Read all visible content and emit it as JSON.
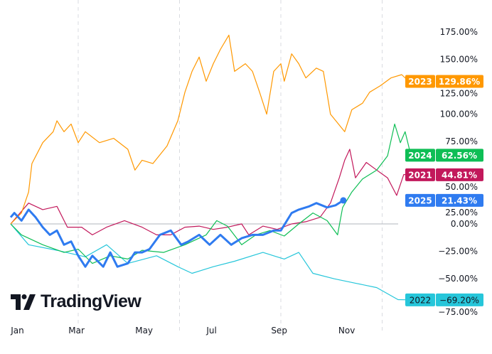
{
  "chart_data": {
    "type": "line",
    "title": "",
    "xlabel": "",
    "ylabel": "",
    "x_unit": "months since Jan 1",
    "xlim": [
      0,
      12
    ],
    "ylim": [
      -80,
      190
    ],
    "x_ticks": [
      {
        "label": "Jan",
        "value": 0.2
      },
      {
        "label": "Mar",
        "value": 1.95
      },
      {
        "label": "May",
        "value": 3.95
      },
      {
        "label": "Jul",
        "value": 5.95
      },
      {
        "label": "Sep",
        "value": 7.95
      },
      {
        "label": "Nov",
        "value": 9.95
      }
    ],
    "y_ticks": [
      {
        "label": "175.00%",
        "value": 175
      },
      {
        "label": "150.00%",
        "value": 150
      },
      {
        "label": "125.00%",
        "value": 125
      },
      {
        "label": "100.00%",
        "value": 100
      },
      {
        "label": "75.00%",
        "value": 75
      },
      {
        "label": "50.00%",
        "value": 50
      },
      {
        "label": "25.00%",
        "value": 25
      },
      {
        "label": "0.00%",
        "value": 0
      },
      {
        "label": "−25.00%",
        "value": -25
      },
      {
        "label": "−50.00%",
        "value": -50
      },
      {
        "label": "−75.00%",
        "value": -75
      }
    ],
    "grid_x_dashed": [
      2,
      5,
      8,
      11
    ],
    "legend": "right-axis-tags",
    "series": [
      {
        "name": "2023",
        "color": "#ff9800",
        "last_label": "129.86%",
        "width": 1.2,
        "points": [
          [
            0,
            0
          ],
          [
            0.32,
            10
          ],
          [
            0.53,
            29
          ],
          [
            0.63,
            55
          ],
          [
            0.95,
            74
          ],
          [
            1.26,
            84
          ],
          [
            1.37,
            94
          ],
          [
            1.58,
            84
          ],
          [
            1.79,
            91
          ],
          [
            2.0,
            74
          ],
          [
            2.21,
            84
          ],
          [
            2.63,
            74
          ],
          [
            3.05,
            78
          ],
          [
            3.47,
            68
          ],
          [
            3.68,
            49
          ],
          [
            3.89,
            58
          ],
          [
            4.21,
            55
          ],
          [
            4.63,
            71
          ],
          [
            4.95,
            94
          ],
          [
            5.16,
            120
          ],
          [
            5.37,
            139
          ],
          [
            5.58,
            152
          ],
          [
            5.79,
            130
          ],
          [
            6.0,
            146
          ],
          [
            6.21,
            159
          ],
          [
            6.46,
            172
          ],
          [
            6.63,
            139
          ],
          [
            6.95,
            146
          ],
          [
            7.16,
            139
          ],
          [
            7.37,
            120
          ],
          [
            7.58,
            100
          ],
          [
            7.79,
            139
          ],
          [
            8.0,
            146
          ],
          [
            8.1,
            130
          ],
          [
            8.32,
            155
          ],
          [
            8.53,
            146
          ],
          [
            8.74,
            133
          ],
          [
            9.05,
            142
          ],
          [
            9.26,
            139
          ],
          [
            9.47,
            100
          ],
          [
            9.89,
            84
          ],
          [
            10.1,
            104
          ],
          [
            10.42,
            110
          ],
          [
            10.63,
            120
          ],
          [
            10.95,
            126
          ],
          [
            11.26,
            133
          ],
          [
            11.58,
            136
          ],
          [
            11.79,
            129.86
          ]
        ]
      },
      {
        "name": "2024",
        "color": "#0ebe55",
        "last_label": "62.56%",
        "width": 1.2,
        "points": [
          [
            0,
            0
          ],
          [
            0.32,
            -10
          ],
          [
            0.95,
            -19
          ],
          [
            1.58,
            -26
          ],
          [
            2.0,
            -23
          ],
          [
            2.42,
            -36
          ],
          [
            2.95,
            -29
          ],
          [
            3.47,
            -32
          ],
          [
            3.89,
            -24
          ],
          [
            4.53,
            -26
          ],
          [
            5.16,
            -19
          ],
          [
            5.79,
            -10
          ],
          [
            6.1,
            3
          ],
          [
            6.42,
            -2
          ],
          [
            6.84,
            -19
          ],
          [
            7.26,
            -10
          ],
          [
            7.68,
            -6
          ],
          [
            8.1,
            -11
          ],
          [
            8.53,
            0
          ],
          [
            8.95,
            10
          ],
          [
            9.37,
            3
          ],
          [
            9.68,
            -10
          ],
          [
            9.83,
            15
          ],
          [
            10.1,
            29
          ],
          [
            10.42,
            41
          ],
          [
            10.84,
            49
          ],
          [
            11.16,
            62
          ],
          [
            11.37,
            91
          ],
          [
            11.54,
            74
          ],
          [
            11.68,
            84
          ],
          [
            11.85,
            62.56
          ]
        ]
      },
      {
        "name": "2021",
        "color": "#c2185b",
        "last_label": "44.81%",
        "width": 1.2,
        "points": [
          [
            0,
            0
          ],
          [
            0.53,
            19
          ],
          [
            0.95,
            13
          ],
          [
            1.37,
            16
          ],
          [
            1.68,
            -3
          ],
          [
            2.1,
            -3
          ],
          [
            2.42,
            -10
          ],
          [
            2.84,
            -3
          ],
          [
            3.37,
            3
          ],
          [
            3.89,
            -3
          ],
          [
            4.32,
            -10
          ],
          [
            4.74,
            -10
          ],
          [
            5.16,
            -3
          ],
          [
            5.58,
            -2
          ],
          [
            6.0,
            -5
          ],
          [
            6.42,
            -3
          ],
          [
            6.84,
            0
          ],
          [
            7.05,
            -10
          ],
          [
            7.47,
            -2
          ],
          [
            7.89,
            -5
          ],
          [
            8.32,
            0
          ],
          [
            8.74,
            2
          ],
          [
            9.16,
            6
          ],
          [
            9.47,
            19
          ],
          [
            9.73,
            42
          ],
          [
            9.89,
            58
          ],
          [
            10.04,
            68
          ],
          [
            10.21,
            42
          ],
          [
            10.53,
            56
          ],
          [
            10.84,
            49
          ],
          [
            11.16,
            42
          ],
          [
            11.43,
            26
          ],
          [
            11.64,
            45
          ],
          [
            11.79,
            44.81
          ]
        ]
      },
      {
        "name": "2025",
        "color": "#2f7bf0",
        "last_label": "21.43%",
        "width": 3,
        "points": [
          [
            0,
            6
          ],
          [
            0.11,
            10
          ],
          [
            0.32,
            3
          ],
          [
            0.53,
            13
          ],
          [
            0.74,
            6
          ],
          [
            0.95,
            -3
          ],
          [
            1.16,
            -10
          ],
          [
            1.37,
            -6
          ],
          [
            1.58,
            -19
          ],
          [
            1.79,
            -16
          ],
          [
            2.0,
            -29
          ],
          [
            2.21,
            -39
          ],
          [
            2.42,
            -29
          ],
          [
            2.74,
            -39
          ],
          [
            2.95,
            -26
          ],
          [
            3.16,
            -39
          ],
          [
            3.47,
            -36
          ],
          [
            3.68,
            -26
          ],
          [
            3.89,
            -26
          ],
          [
            4.11,
            -23
          ],
          [
            4.42,
            -10
          ],
          [
            4.74,
            -6
          ],
          [
            5.05,
            -19
          ],
          [
            5.26,
            -16
          ],
          [
            5.58,
            -10
          ],
          [
            5.89,
            -19
          ],
          [
            6.21,
            -10
          ],
          [
            6.53,
            -19
          ],
          [
            6.84,
            -13
          ],
          [
            7.16,
            -10
          ],
          [
            7.47,
            -10
          ],
          [
            7.79,
            -6
          ],
          [
            8.0,
            -6
          ],
          [
            8.32,
            10
          ],
          [
            8.53,
            13
          ],
          [
            8.84,
            16
          ],
          [
            9.05,
            19
          ],
          [
            9.37,
            15
          ],
          [
            9.62,
            17
          ],
          [
            9.85,
            21.43
          ]
        ]
      },
      {
        "name": "2022",
        "color": "#26c6da",
        "last_label": "−69.20%",
        "width": 1.2,
        "points": [
          [
            0,
            0
          ],
          [
            0.53,
            -19
          ],
          [
            1.37,
            -24
          ],
          [
            2.21,
            -30
          ],
          [
            2.84,
            -19
          ],
          [
            3.47,
            -36
          ],
          [
            4.32,
            -29
          ],
          [
            4.95,
            -39
          ],
          [
            5.37,
            -45
          ],
          [
            6.0,
            -39
          ],
          [
            6.63,
            -34
          ],
          [
            7.47,
            -26
          ],
          [
            8.1,
            -32
          ],
          [
            8.53,
            -26
          ],
          [
            8.95,
            -45
          ],
          [
            9.58,
            -50
          ],
          [
            10.21,
            -54
          ],
          [
            10.84,
            -58
          ],
          [
            11.47,
            -69
          ],
          [
            11.79,
            -69.2
          ]
        ]
      }
    ]
  },
  "logo": {
    "text": "TradingView"
  }
}
